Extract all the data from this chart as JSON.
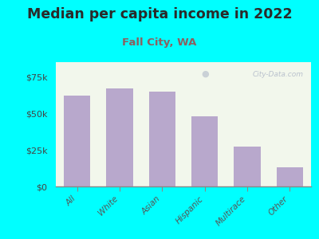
{
  "title": "Median per capita income in 2022",
  "subtitle": "Fall City, WA",
  "categories": [
    "All",
    "White",
    "Asian",
    "Hispanic",
    "Multirace",
    "Other"
  ],
  "values": [
    62000,
    67000,
    65000,
    48000,
    27000,
    13000
  ],
  "bar_color": "#b8a8cc",
  "background_outer": "#00ffff",
  "background_inner": "#f2f7ec",
  "title_color": "#2a2a2a",
  "subtitle_color": "#8b6060",
  "tick_color": "#555555",
  "ytick_color": "#444444",
  "ylim": [
    0,
    85000
  ],
  "yticks": [
    0,
    25000,
    50000,
    75000
  ],
  "ytick_labels": [
    "$0",
    "$25k",
    "$50k",
    "$75k"
  ],
  "title_fontsize": 12.5,
  "subtitle_fontsize": 9.5,
  "watermark": "City-Data.com"
}
